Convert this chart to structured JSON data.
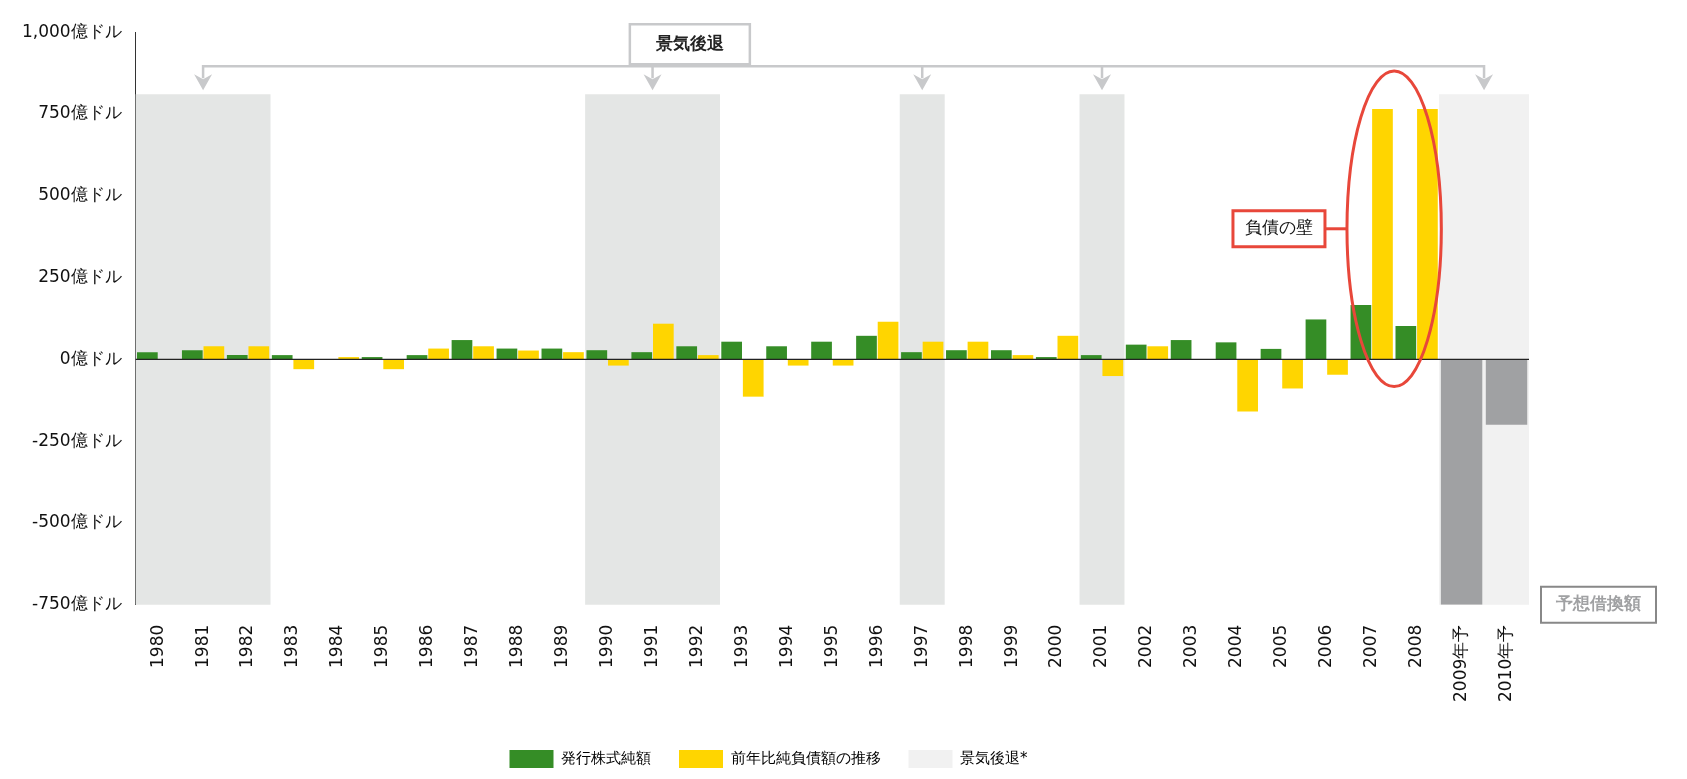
{
  "chart_data": {
    "type": "bar",
    "categories": [
      "1980",
      "1981",
      "1982",
      "1983",
      "1984",
      "1985",
      "1986",
      "1987",
      "1988",
      "1989",
      "1990",
      "1991",
      "1992",
      "1993",
      "1994",
      "1995",
      "1996",
      "1997",
      "1998",
      "1999",
      "2000",
      "2001",
      "2002",
      "2003",
      "2004",
      "2005",
      "2006",
      "2007",
      "2008",
      "2009年予",
      "2010年予"
    ],
    "series": [
      {
        "name": "発行株式純額",
        "color": "#358d26",
        "values": [
          22,
          28,
          13,
          13,
          0,
          7,
          13,
          59,
          33,
          33,
          28,
          22,
          40,
          54,
          40,
          54,
          72,
          22,
          28,
          28,
          7,
          13,
          45,
          59,
          52,
          32,
          122,
          166,
          102,
          null,
          null
        ]
      },
      {
        "name": "前年比純負債額の推移",
        "color": "#ffd500",
        "values": [
          0,
          40,
          40,
          -30,
          7,
          -30,
          33,
          40,
          27,
          22,
          -19,
          109,
          13,
          -114,
          -19,
          -19,
          115,
          54,
          54,
          13,
          72,
          -51,
          40,
          0,
          -159,
          -89,
          -47,
          765,
          765,
          null,
          null
        ]
      },
      {
        "name": "予想借換額",
        "color": "#a0a1a3",
        "values": [
          null,
          null,
          null,
          null,
          null,
          null,
          null,
          null,
          null,
          null,
          null,
          null,
          null,
          null,
          null,
          null,
          null,
          null,
          null,
          null,
          null,
          null,
          null,
          null,
          null,
          null,
          null,
          null,
          null,
          -750,
          -200
        ]
      }
    ],
    "ylim": [
      -750,
      1000
    ],
    "yticks": [
      {
        "value": 1000,
        "label": "1,000億ドル"
      },
      {
        "value": 750,
        "label": "750億ドル"
      },
      {
        "value": 500,
        "label": "500億ドル"
      },
      {
        "value": 250,
        "label": "250億ドル"
      },
      {
        "value": 0,
        "label": "0億ドル"
      },
      {
        "value": -250,
        "label": "-250億ドル"
      },
      {
        "value": -500,
        "label": "-500億ドル"
      },
      {
        "value": -750,
        "label": "-750億ドル"
      }
    ],
    "bands": [
      {
        "axis": "x",
        "from": "1980",
        "to": "1982",
        "color": "#e4e6e5"
      },
      {
        "axis": "x",
        "from": "1990",
        "to": "1992",
        "color": "#e4e6e5"
      },
      {
        "axis": "x",
        "from": "1997",
        "to": "1997",
        "color": "#e4e6e5"
      },
      {
        "axis": "x",
        "from": "2001",
        "to": "2001",
        "color": "#e4e6e5"
      },
      {
        "axis": "x",
        "from": "2009年予",
        "to": "2010年予",
        "color": "#f1f1f1",
        "label": "景気後退*"
      }
    ],
    "annotations": [
      "景気後退",
      "負債の壁"
    ],
    "legend": "bottom"
  }
}
